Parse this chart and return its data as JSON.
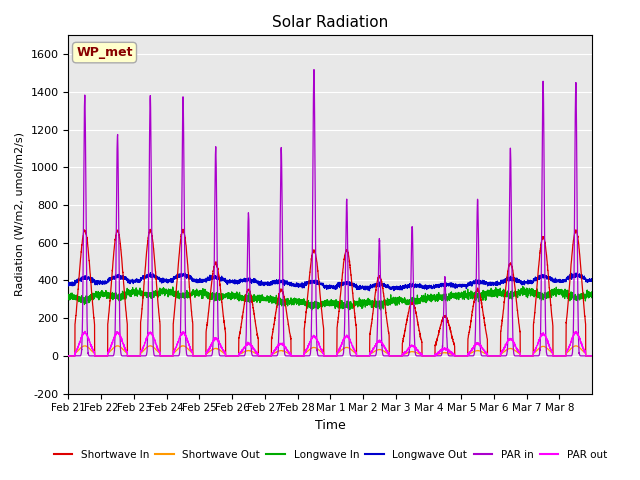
{
  "title": "Solar Radiation",
  "xlabel": "Time",
  "ylabel": "Radiation (W/m2, umol/m2/s)",
  "ylim": [
    -200,
    1700
  ],
  "yticks": [
    -200,
    0,
    200,
    400,
    600,
    800,
    1000,
    1200,
    1400,
    1600
  ],
  "bg_color": "#e8e8e8",
  "legend_label": "WP_met",
  "legend_label_color": "#880000",
  "legend_box_facecolor": "#ffffcc",
  "legend_box_edgecolor": "#aaaaaa",
  "series": {
    "shortwave_in": {
      "color": "#dd0000",
      "label": "Shortwave In"
    },
    "shortwave_out": {
      "color": "#ff9900",
      "label": "Shortwave Out"
    },
    "longwave_in": {
      "color": "#00aa00",
      "label": "Longwave In"
    },
    "longwave_out": {
      "color": "#0000cc",
      "label": "Longwave Out"
    },
    "par_in": {
      "color": "#aa00cc",
      "label": "PAR in"
    },
    "par_out": {
      "color": "#ff00ff",
      "label": "PAR out"
    }
  },
  "xtick_labels": [
    "Feb 21",
    "Feb 22",
    "Feb 23",
    "Feb 24",
    "Feb 25",
    "Feb 26",
    "Feb 27",
    "Feb 28",
    "Mar 1",
    "Mar 2",
    "Mar 3",
    "Mar 4",
    "Mar 5",
    "Mar 6",
    "Mar 7",
    "Mar 8"
  ],
  "n_days": 16,
  "pts_per_day": 288
}
